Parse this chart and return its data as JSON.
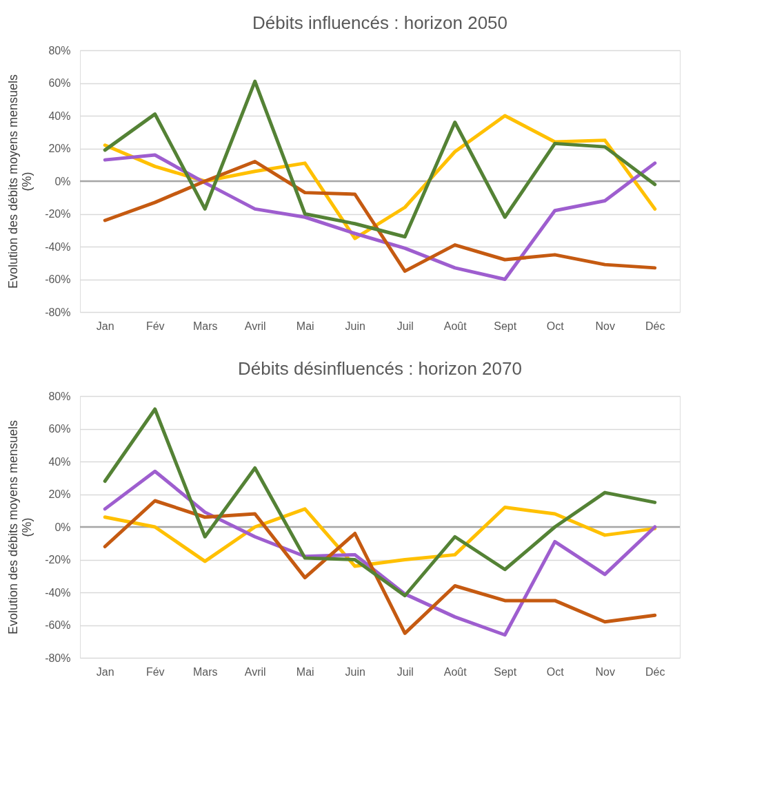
{
  "chart_data": [
    {
      "type": "line",
      "title": "Débits influencés : horizon 2050",
      "ylabel": "Evolution des débits moyens mensuels\n(%)",
      "categories": [
        "Jan",
        "Fév",
        "Mars",
        "Avril",
        "Mai",
        "Juin",
        "Juil",
        "Août",
        "Sept",
        "Oct",
        "Nov",
        "Déc"
      ],
      "ylim": [
        -80,
        80
      ],
      "yticks": [
        {
          "value": -80,
          "label": "-80%"
        },
        {
          "value": -60,
          "label": "-60%"
        },
        {
          "value": -40,
          "label": "-40%"
        },
        {
          "value": -20,
          "label": "-20%"
        },
        {
          "value": 0,
          "label": "0%"
        },
        {
          "value": 20,
          "label": "20%"
        },
        {
          "value": 40,
          "label": "40%"
        },
        {
          "value": 60,
          "label": "60%"
        },
        {
          "value": 80,
          "label": "80%"
        }
      ],
      "grid": "y",
      "marker": "none",
      "line_style": "solid",
      "ref_lines": [
        {
          "axis": "y",
          "value": 0,
          "color": "#a6a6a6"
        }
      ],
      "series": [
        {
          "color": "#ffc000",
          "values": [
            22,
            9,
            0,
            6,
            11,
            -35,
            -16,
            18,
            40,
            24,
            25,
            -17
          ]
        },
        {
          "color": "#9e5ecf",
          "values": [
            13,
            16,
            -1,
            -17,
            -22,
            -32,
            -41,
            -53,
            -60,
            -18,
            -12,
            11
          ]
        },
        {
          "color": "#c55a11",
          "values": [
            -24,
            -13,
            0,
            12,
            -7,
            -8,
            -55,
            -39,
            -48,
            -45,
            -51,
            -53
          ]
        },
        {
          "color": "#548235",
          "values": [
            19,
            41,
            -17,
            61,
            -20,
            -26,
            -34,
            36,
            -22,
            23,
            21,
            -2
          ]
        }
      ]
    },
    {
      "type": "line",
      "title": "Débits désinfluencés : horizon 2070",
      "ylabel": "Evolution des débits moyens mensuels\n(%)",
      "categories": [
        "Jan",
        "Fév",
        "Mars",
        "Avril",
        "Mai",
        "Juin",
        "Juil",
        "Août",
        "Sept",
        "Oct",
        "Nov",
        "Déc"
      ],
      "ylim": [
        -80,
        80
      ],
      "yticks": [
        {
          "value": -80,
          "label": "-80%"
        },
        {
          "value": -60,
          "label": "-60%"
        },
        {
          "value": -40,
          "label": "-40%"
        },
        {
          "value": -20,
          "label": "-20%"
        },
        {
          "value": 0,
          "label": "0%"
        },
        {
          "value": 20,
          "label": "20%"
        },
        {
          "value": 40,
          "label": "40%"
        },
        {
          "value": 60,
          "label": "60%"
        },
        {
          "value": 80,
          "label": "80%"
        }
      ],
      "grid": "y",
      "marker": "none",
      "line_style": "solid",
      "ref_lines": [
        {
          "axis": "y",
          "value": 0,
          "color": "#a6a6a6"
        }
      ],
      "series": [
        {
          "color": "#ffc000",
          "values": [
            6,
            0,
            -21,
            0,
            11,
            -24,
            -20,
            -17,
            12,
            8,
            -5,
            -1
          ]
        },
        {
          "color": "#9e5ecf",
          "values": [
            11,
            34,
            9,
            -6,
            -18,
            -17,
            -41,
            -55,
            -66,
            -9,
            -29,
            0
          ]
        },
        {
          "color": "#c55a11",
          "values": [
            -12,
            16,
            6,
            8,
            -31,
            -4,
            -65,
            -36,
            -45,
            -45,
            -58,
            -54
          ]
        },
        {
          "color": "#548235",
          "values": [
            28,
            72,
            -6,
            36,
            -19,
            -20,
            -42,
            -6,
            -26,
            0,
            21,
            15
          ]
        }
      ]
    }
  ]
}
